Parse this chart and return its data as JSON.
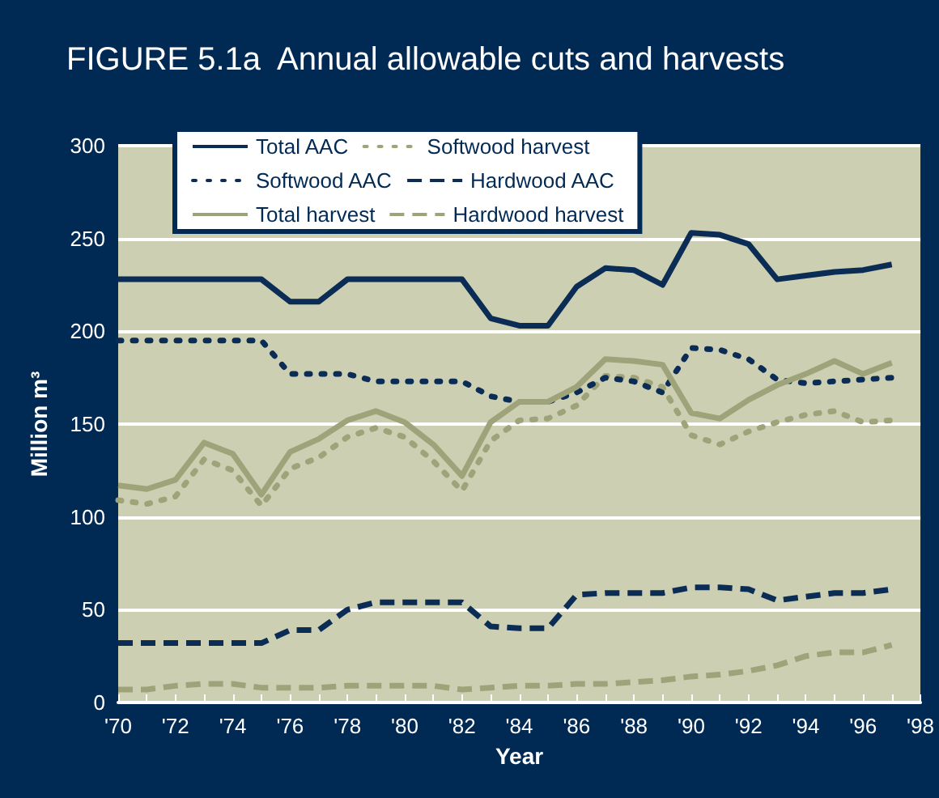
{
  "chart_data": {
    "type": "line",
    "title": "FIGURE 5.1a  Annual allowable cuts and harvests",
    "xlabel": "Year",
    "ylabel": "Million m³",
    "x": [
      1970,
      1971,
      1972,
      1973,
      1974,
      1975,
      1976,
      1977,
      1978,
      1979,
      1980,
      1981,
      1982,
      1983,
      1984,
      1985,
      1986,
      1987,
      1988,
      1989,
      1990,
      1991,
      1992,
      1993,
      1994,
      1995,
      1996,
      1997
    ],
    "xlim": [
      1970,
      1998
    ],
    "xticks": [
      {
        "value": 1970,
        "label": "'70"
      },
      {
        "value": 1971,
        "label": null
      },
      {
        "value": 1972,
        "label": "'72"
      },
      {
        "value": 1973,
        "label": null
      },
      {
        "value": 1974,
        "label": "'74"
      },
      {
        "value": 1975,
        "label": null
      },
      {
        "value": 1976,
        "label": "'76"
      },
      {
        "value": 1977,
        "label": null
      },
      {
        "value": 1978,
        "label": "'78"
      },
      {
        "value": 1979,
        "label": null
      },
      {
        "value": 1980,
        "label": "'80"
      },
      {
        "value": 1981,
        "label": null
      },
      {
        "value": 1982,
        "label": "'82"
      },
      {
        "value": 1983,
        "label": null
      },
      {
        "value": 1984,
        "label": "'84"
      },
      {
        "value": 1985,
        "label": null
      },
      {
        "value": 1986,
        "label": "'86"
      },
      {
        "value": 1987,
        "label": null
      },
      {
        "value": 1988,
        "label": "'88"
      },
      {
        "value": 1989,
        "label": null
      },
      {
        "value": 1990,
        "label": "'90"
      },
      {
        "value": 1991,
        "label": null
      },
      {
        "value": 1992,
        "label": "'92"
      },
      {
        "value": 1993,
        "label": null
      },
      {
        "value": 1994,
        "label": "'94"
      },
      {
        "value": 1995,
        "label": null
      },
      {
        "value": 1996,
        "label": "'96"
      },
      {
        "value": 1997,
        "label": null
      },
      {
        "value": 1998,
        "label": "'98"
      }
    ],
    "ylim": [
      0,
      300
    ],
    "yticks": [
      0,
      50,
      100,
      150,
      200,
      250,
      300
    ],
    "grid": "y",
    "legend": "top left",
    "marker": "none",
    "series": [
      {
        "name": "Total AAC",
        "color": "#0b2c55",
        "line_style": "solid",
        "values": [
          228,
          228,
          228,
          228,
          228,
          228,
          216,
          216,
          228,
          228,
          228,
          228,
          228,
          207,
          203,
          203,
          224,
          234,
          233,
          225,
          253,
          252,
          247,
          228,
          230,
          232,
          233,
          236
        ]
      },
      {
        "name": "Softwood harvest",
        "color": "#9ea37a",
        "line_style": "dotted",
        "values": [
          109,
          107,
          111,
          131,
          125,
          106,
          126,
          132,
          143,
          148,
          143,
          130,
          114,
          141,
          152,
          153,
          160,
          176,
          175,
          170,
          144,
          139,
          146,
          151,
          155,
          157,
          151,
          152
        ]
      },
      {
        "name": "Softwood AAC",
        "color": "#0b2c55",
        "line_style": "dotted",
        "values": [
          195,
          195,
          195,
          195,
          195,
          195,
          177,
          177,
          177,
          173,
          173,
          173,
          173,
          165,
          162,
          162,
          167,
          175,
          173,
          167,
          191,
          190,
          185,
          174,
          172,
          173,
          174,
          175
        ]
      },
      {
        "name": "Hardwood AAC",
        "color": "#0b2c55",
        "line_style": "dashed",
        "values": [
          32,
          32,
          32,
          32,
          32,
          32,
          39,
          39,
          50,
          54,
          54,
          54,
          54,
          41,
          40,
          40,
          58,
          59,
          59,
          59,
          62,
          62,
          61,
          55,
          57,
          59,
          59,
          61
        ]
      },
      {
        "name": "Total harvest",
        "color": "#9ea37a",
        "line_style": "solid",
        "values": [
          117,
          115,
          120,
          140,
          134,
          112,
          135,
          142,
          152,
          157,
          151,
          139,
          122,
          151,
          162,
          162,
          170,
          185,
          184,
          182,
          156,
          153,
          163,
          171,
          177,
          184,
          177,
          183
        ]
      },
      {
        "name": "Hardwood harvest",
        "color": "#9ea37a",
        "line_style": "dashed",
        "values": [
          7,
          7,
          9,
          10,
          10,
          8,
          8,
          8,
          9,
          9,
          9,
          9,
          7,
          8,
          9,
          9,
          10,
          10,
          11,
          12,
          14,
          15,
          17,
          20,
          25,
          27,
          27,
          31
        ]
      }
    ]
  }
}
